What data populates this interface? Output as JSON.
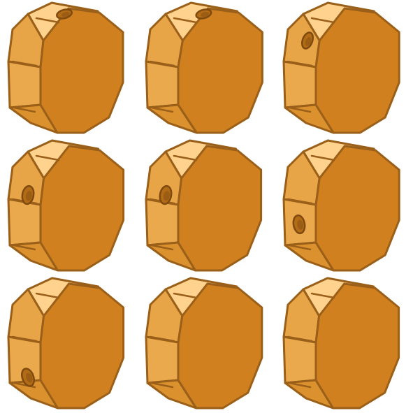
{
  "colors": {
    "face": "#d0801f",
    "side_light": "#e8a548",
    "side_mid": "#eaa94c",
    "top_light": "#ffd28e",
    "side_dark": "#dc912f",
    "outline": "#9a5f18",
    "hole": "#b36c16",
    "hole_outline": "#7f4a10"
  },
  "tiles": [
    {
      "id": "tile-1",
      "hole": "top",
      "variant": "a"
    },
    {
      "id": "tile-2",
      "hole": "top",
      "variant": "b"
    },
    {
      "id": "tile-3",
      "hole": "face-left",
      "variant": "c"
    },
    {
      "id": "tile-4",
      "hole": "side-upper",
      "variant": "d"
    },
    {
      "id": "tile-5",
      "hole": "side-upper",
      "variant": "d"
    },
    {
      "id": "tile-6",
      "hole": "side-lower",
      "variant": "c"
    },
    {
      "id": "tile-7",
      "hole": "side-bottom",
      "variant": "d"
    },
    {
      "id": "tile-8",
      "hole": "none",
      "variant": "e"
    },
    {
      "id": "tile-9",
      "hole": "none",
      "variant": "d"
    }
  ]
}
